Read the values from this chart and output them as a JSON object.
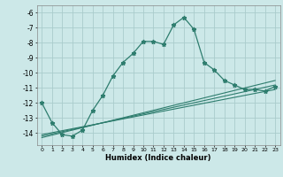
{
  "title": "",
  "xlabel": "Humidex (Indice chaleur)",
  "ylabel": "",
  "bg_color": "#cce8e8",
  "grid_color": "#aacccc",
  "line_color": "#2e7d6e",
  "xlim": [
    -0.5,
    23.5
  ],
  "ylim": [
    -14.8,
    -5.5
  ],
  "yticks": [
    -14,
    -13,
    -12,
    -11,
    -10,
    -9,
    -8,
    -7,
    -6
  ],
  "xticks": [
    0,
    1,
    2,
    3,
    4,
    5,
    6,
    7,
    8,
    9,
    10,
    11,
    12,
    13,
    14,
    15,
    16,
    17,
    18,
    19,
    20,
    21,
    22,
    23
  ],
  "main_curve_x": [
    0,
    1,
    2,
    3,
    4,
    5,
    6,
    7,
    8,
    9,
    10,
    11,
    12,
    13,
    14,
    15,
    16,
    17,
    18,
    19,
    20,
    21,
    22,
    23
  ],
  "main_curve_y": [
    -12.0,
    -13.3,
    -14.1,
    -14.2,
    -13.8,
    -12.5,
    -11.5,
    -10.2,
    -9.3,
    -8.7,
    -7.9,
    -7.9,
    -8.1,
    -6.8,
    -6.3,
    -7.1,
    -9.3,
    -9.8,
    -10.5,
    -10.8,
    -11.1,
    -11.1,
    -11.2,
    -10.9
  ],
  "line1_x": [
    0,
    23
  ],
  "line1_y": [
    -14.1,
    -11.1
  ],
  "line2_x": [
    0,
    23
  ],
  "line2_y": [
    -14.2,
    -10.8
  ],
  "line3_x": [
    0,
    23
  ],
  "line3_y": [
    -14.3,
    -10.5
  ]
}
